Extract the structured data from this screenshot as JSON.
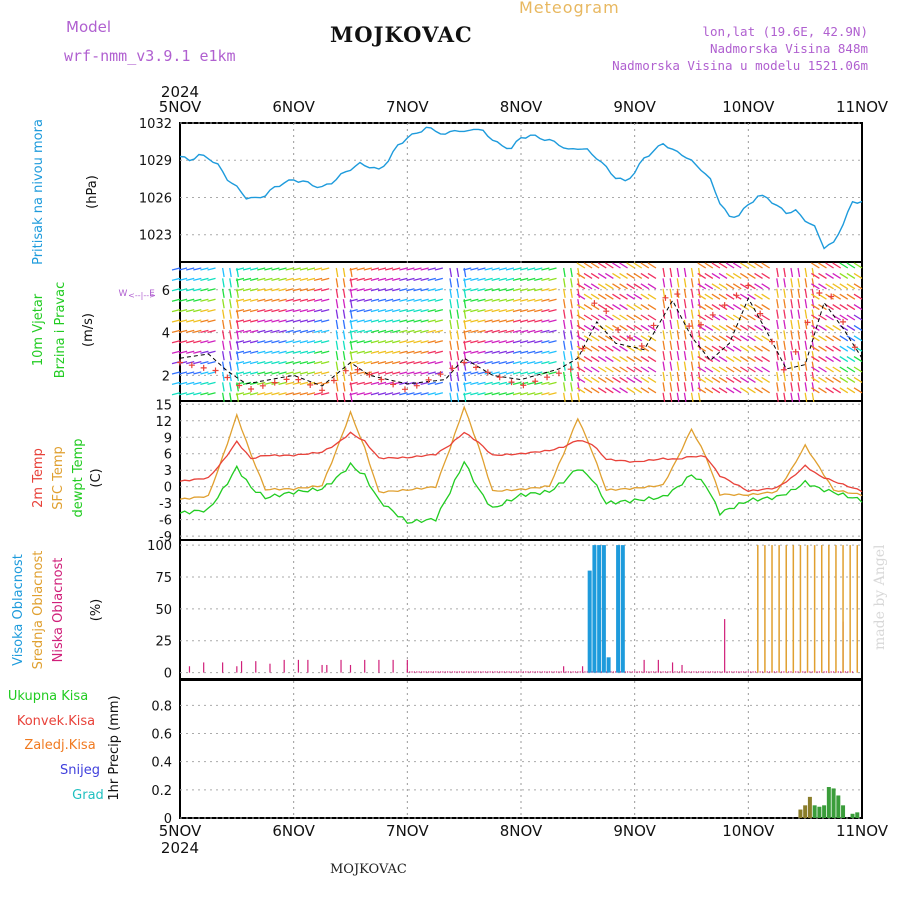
{
  "header": {
    "title": "MOJKOVAC",
    "subtitle": "Meteogram",
    "model_label": "Model",
    "model_name": "wrf-nmm_v3.9.1 e1km",
    "location_line": "lon,lat (19.6E, 42.9N)",
    "elevation_line": "Nadmorska Visina 848m",
    "model_elevation_line": "Nadmorska Visina u modelu 1521.06m",
    "footer_title": "MOJKOVAC",
    "credit": "made by Angel"
  },
  "colors": {
    "pressure": "#1e9bdc",
    "temp2m": "#e8423a",
    "sfc_temp": "#e0a030",
    "dewpt": "#22cc22",
    "high_cloud": "#1e9bdc",
    "mid_cloud": "#e0a030",
    "low_cloud": "#d0207a",
    "ukupna": "#22cc22",
    "konvek": "#e8423a",
    "zaledj": "#f07a20",
    "snijeg": "#4040dd",
    "grad": "#20c0c0",
    "model_label": "#b060d0",
    "meteogram": "#e8b860"
  },
  "chart_data": [
    {
      "id": "pressure",
      "type": "line",
      "ylabel_1": "Pritisak na nivou mora",
      "ylabel_2": "(hPa)",
      "yticks": [
        "1023",
        "1026",
        "1029",
        "1032"
      ],
      "ylim": [
        1020.8,
        1032
      ],
      "x": [
        0,
        0.25,
        0.5,
        0.75,
        1,
        1.25,
        1.5,
        1.75,
        2,
        2.25,
        2.5,
        2.75,
        3,
        3.25,
        3.5,
        3.75,
        4,
        4.25,
        4.5,
        4.75,
        5,
        5.25,
        5.5,
        5.75,
        6,
        6.25,
        6.5,
        6.75,
        7,
        7.25,
        7.5,
        7.75,
        8,
        8.25,
        8.5,
        8.75,
        9,
        9.25,
        9.5,
        9.75,
        10,
        10.25,
        10.5,
        10.75,
        11,
        11.25,
        11.5,
        11.75,
        12,
        12.25,
        12.5,
        12.75,
        13,
        13.25,
        13.5,
        13.75,
        14,
        14.25,
        14.5,
        14.75,
        15,
        15.25,
        15.5,
        15.75,
        16,
        16.25,
        16.5,
        16.75,
        17,
        17.25,
        17.5,
        17.75,
        18,
        18.25,
        18.5,
        18.75,
        19,
        19.25,
        19.5,
        19.75,
        20,
        20.25,
        20.5,
        20.75,
        21,
        21.25,
        21.5,
        21.75,
        22,
        22.25,
        22.5,
        22.75,
        23,
        23.25,
        23.5,
        23.75,
        24,
        24.25,
        24.5,
        24.75,
        25,
        25.25,
        25.5,
        25.75,
        26,
        26.25,
        26.5,
        26.75,
        27,
        27.25,
        27.5,
        27.75,
        28,
        28.25,
        28.5,
        28.75,
        29,
        29.25,
        29.5,
        29.75,
        30,
        30.25,
        30.5,
        30.75,
        31,
        31.25,
        31.5,
        31.75,
        32,
        32.25,
        32.5,
        32.75,
        33,
        33.25,
        33.5,
        33.75,
        34,
        34.25,
        34.5,
        34.75,
        35,
        35.25,
        35.5,
        35.75,
        36,
        36.25,
        36.5,
        36.75,
        37,
        37.25,
        37.5,
        37.75,
        38,
        38.25,
        38.5,
        38.75,
        39,
        39.25,
        39.5,
        39.75,
        40,
        40.25,
        40.5,
        40.75,
        41,
        41.25,
        41.5,
        41.75,
        42,
        42.25,
        42.5,
        42.75,
        43,
        43.25,
        43.5,
        43.75,
        44,
        44.25,
        44.5,
        44.75,
        45,
        45.25,
        45.5,
        45.75,
        46,
        46.25,
        46.5,
        46.75,
        47,
        47.25,
        47.5,
        47.75,
        48,
        48.25,
        48.5,
        48.75,
        49,
        49.25,
        49.5,
        49.75,
        50,
        50.25,
        50.5,
        50.75,
        51,
        51.25,
        51.5,
        51.75,
        52,
        52.25,
        52.5,
        52.75,
        53,
        53.25,
        53.5,
        53.75,
        54,
        54.25,
        54.5,
        54.75,
        55,
        55.25,
        55.5,
        55.75,
        56,
        56.25,
        56.5,
        56.75,
        57,
        57.25,
        57.5,
        57.75,
        58,
        58.25,
        58.5,
        58.75,
        59,
        59.25,
        59.5,
        59.75,
        60,
        60.25,
        60.5,
        60.75,
        61,
        61.25,
        61.5,
        61.75,
        62,
        62.25,
        62.5,
        62.75,
        63,
        63.25,
        63.5,
        63.75,
        64,
        64.25,
        64.5,
        64.75,
        65,
        65.25,
        65.5,
        65.75,
        66,
        66.25,
        66.5,
        66.75,
        67,
        67.25,
        67.5,
        67.75,
        68,
        68.25,
        68.5,
        68.75,
        69,
        69.25,
        69.5,
        69.75,
        70,
        70.25,
        70.5,
        70.75,
        71,
        71.25,
        71.5,
        71.75,
        72,
        72.25,
        72.5,
        72.75,
        73,
        73.25,
        73.5,
        73.75,
        74,
        74.25,
        74.5,
        74.75,
        75,
        75.25,
        75.5,
        75.75,
        76,
        76.25,
        76.5,
        76.75,
        77,
        77.25,
        77.5,
        77.75,
        78,
        78.25,
        78.5,
        78.75,
        79,
        79.25,
        79.5,
        79.75,
        80,
        80.25,
        80.5,
        80.75,
        81,
        81.25,
        81.5,
        81.75,
        82,
        82.25,
        82.5,
        82.75,
        83,
        83.25,
        83.5,
        83.75,
        84,
        84.25,
        84.5,
        84.75,
        85,
        85.25,
        85.5,
        85.75,
        86,
        86.25,
        86.5,
        86.75,
        87,
        87.25,
        87.5,
        87.75,
        88,
        88.25,
        88.5,
        88.75,
        89,
        89.25,
        89.5,
        89.75,
        90,
        90.25,
        90.5,
        90.75,
        91,
        91.25,
        91.5,
        91.75,
        92,
        92.25,
        92.5,
        92.75,
        93,
        93.25,
        93.5,
        93.75,
        94,
        94.25,
        94.5,
        94.75,
        95,
        95.25,
        95.5,
        95.75,
        96,
        96.25,
        96.5,
        96.75,
        97,
        97.25,
        97.5,
        97.75,
        98,
        98.25,
        98.5,
        98.75,
        99,
        99.25,
        99.5,
        99.75,
        100,
        100.25,
        100.5,
        100.75,
        101,
        101.25,
        101.5,
        101.75,
        102,
        102.25,
        102.5,
        102.75,
        103,
        103.25,
        103.5,
        103.75,
        104,
        104.25,
        104.5,
        104.75,
        105,
        105.25,
        105.5,
        105.75,
        106,
        106.25,
        106.5,
        106.75,
        107,
        107.25,
        107.5,
        107.75,
        108,
        108.25,
        108.5,
        108.75,
        109,
        109.25,
        109.5,
        109.75,
        110,
        110.25,
        110.5,
        110.75,
        111,
        111.25,
        111.5,
        111.75,
        112,
        112.25,
        112.5,
        112.75,
        113,
        113.25,
        113.5,
        113.75,
        114,
        114.25,
        114.5,
        114.75,
        115,
        115.25,
        115.5,
        115.75,
        116,
        116.25,
        116.5,
        116.75,
        117,
        117.25,
        117.5,
        117.75,
        118,
        118.25,
        118.5,
        118.75,
        119,
        119.25,
        119.5,
        119.75,
        120,
        120.25,
        120.5,
        120.75,
        121,
        121.25,
        121.5,
        121.75,
        122,
        122.25,
        122.5,
        122.75,
        123,
        123.25,
        123.5,
        123.75,
        124,
        124.25,
        124.5,
        124.75,
        125,
        125.25,
        125.5,
        125.75,
        126,
        126.25,
        126.5,
        126.75,
        127,
        127.25,
        127.5,
        127.75,
        128,
        128.25,
        128.5,
        128.75,
        129,
        129.25,
        129.5,
        129.75,
        130,
        130.25,
        130.5,
        130.75,
        131,
        131.25,
        131.5,
        131.75,
        132,
        132.25,
        132.5,
        132.75,
        133,
        133.25,
        133.5,
        133.75,
        134,
        134.25,
        134.5,
        134.75,
        135,
        135.25,
        135.5,
        135.75,
        136,
        136.25,
        136.5,
        136.75,
        137,
        137.25,
        137.5,
        137.75,
        138,
        138.25,
        138.5,
        138.75,
        139,
        139.25,
        139.5,
        139.75,
        140,
        140.25,
        140.5,
        140.75,
        141,
        141.25,
        141.5,
        141.75,
        142,
        142.25,
        142.5,
        142.75,
        143,
        143.25,
        143.5,
        143.75,
        144
      ],
      "series": []
    }
  ]
}
